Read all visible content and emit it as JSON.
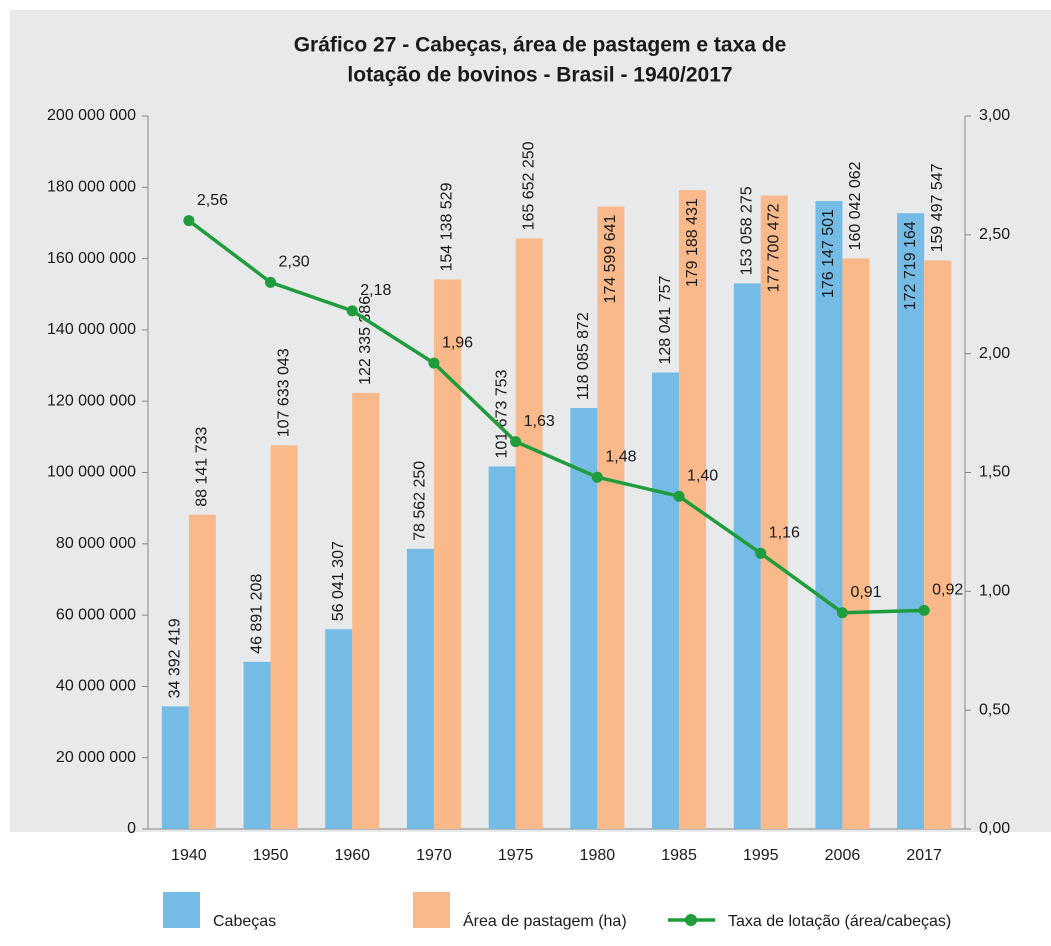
{
  "chart_data": {
    "type": "bar",
    "title": [
      "Gráfico 27 - Cabeças, área de pastagem e taxa de",
      "lotação de bovinos - Brasil - 1940/2017"
    ],
    "categories": [
      "1940",
      "1950",
      "1960",
      "1970",
      "1975",
      "1980",
      "1985",
      "1995",
      "2006",
      "2017"
    ],
    "series": [
      {
        "name": "Cabeças",
        "color": "#74bbe6",
        "type": "bar",
        "values": [
          34392419,
          46891208,
          56041307,
          78562250,
          101673753,
          118085872,
          128041757,
          153058275,
          176147501,
          172719164
        ],
        "value_labels": [
          "34 392 419",
          "46 891 208",
          "56 041 307",
          "78 562 250",
          "101 673 753",
          "118 085 872",
          "128 041 757",
          "153 058 275",
          "176 147 501",
          "172 719 164"
        ]
      },
      {
        "name": "Área de pastagem (ha)",
        "color": "#f9b98a",
        "type": "bar",
        "values": [
          88141733,
          107633043,
          122335386,
          154138529,
          165652250,
          174599641,
          179188431,
          177700472,
          160042062,
          159497547
        ],
        "value_labels": [
          "88 141 733",
          "107 633 043",
          "122 335 386",
          "154 138 529",
          "165 652 250",
          "174 599 641",
          "179 188 431",
          "177 700 472",
          "160 042 062",
          "159 497 547"
        ]
      },
      {
        "name": "Taxa de lotação (área/cabeças)",
        "color": "#1f9c3c",
        "type": "line",
        "axis": "y2",
        "values": [
          2.56,
          2.3,
          2.18,
          1.96,
          1.63,
          1.48,
          1.4,
          1.16,
          0.91,
          0.92
        ],
        "value_labels": [
          "2,56",
          "2,30",
          "2,18",
          "1,96",
          "1,63",
          "1,48",
          "1,40",
          "1,16",
          "0,91",
          "0,92"
        ]
      }
    ],
    "ylim": [
      0,
      200000000
    ],
    "yticks": [
      0,
      {
        "value": 20000000,
        "label": "20 000 000"
      },
      {
        "value": 40000000,
        "label": "40 000 000"
      },
      {
        "value": 60000000,
        "label": "60 000 000"
      },
      {
        "value": 80000000,
        "label": "80 000 000"
      },
      {
        "value": 100000000,
        "label": "100 000 000"
      },
      {
        "value": 120000000,
        "label": "120 000 000"
      },
      {
        "value": 140000000,
        "label": "140 000 000"
      },
      {
        "value": 160000000,
        "label": "160 000 000"
      },
      {
        "value": 180000000,
        "label": "180 000 000"
      },
      {
        "value": 200000000,
        "label": "200 000 000"
      }
    ],
    "y2lim": [
      0,
      3
    ],
    "y2ticks": [
      {
        "value": 0,
        "label": "0,00"
      },
      {
        "value": 0.5,
        "label": "0,50"
      },
      {
        "value": 1,
        "label": "1,00"
      },
      {
        "value": 1.5,
        "label": "1,50"
      },
      {
        "value": 2,
        "label": "2,00"
      },
      {
        "value": 2.5,
        "label": "2,50"
      },
      {
        "value": 3,
        "label": "3,00"
      }
    ]
  }
}
